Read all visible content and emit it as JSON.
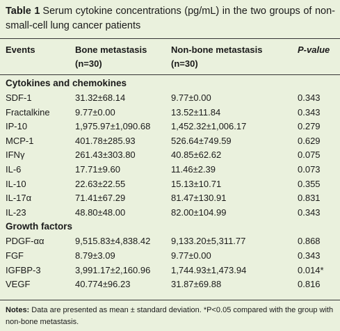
{
  "title": {
    "label": "Table 1",
    "text": "Serum cytokine concentrations (pg/mL) in the two groups of non-small-cell lung cancer patients"
  },
  "header": {
    "events": "Events",
    "bone": [
      "Bone metastasis",
      "(n=30)"
    ],
    "nonbone": [
      "Non-bone metastasis",
      "(n=30)"
    ],
    "p": "P-value"
  },
  "sections": [
    {
      "title": "Cytokines and chemokines",
      "rows": [
        [
          "SDF-1",
          "31.32±68.14",
          "9.77±0.00",
          "0.343"
        ],
        [
          "Fractalkine",
          "9.77±0.00",
          "13.52±11.84",
          "0.343"
        ],
        [
          "IP-10",
          "1,975.97±1,090.68",
          "1,452.32±1,006.17",
          "0.279"
        ],
        [
          "MCP-1",
          "401.78±285.93",
          "526.64±749.59",
          "0.629"
        ],
        [
          "IFNγ",
          "261.43±303.80",
          "40.85±62.62",
          "0.075"
        ],
        [
          "IL-6",
          "17.71±9.60",
          "11.46±2.39",
          "0.073"
        ],
        [
          "IL-10",
          "22.63±22.55",
          "15.13±10.71",
          "0.355"
        ],
        [
          "IL-17α",
          "71.41±67.29",
          "81.47±130.91",
          "0.831"
        ],
        [
          "IL-23",
          "48.80±48.00",
          "82.00±104.99",
          "0.343"
        ]
      ]
    },
    {
      "title": "Growth factors",
      "rows": [
        [
          "PDGF-αα",
          "9,515.83±4,838.42",
          "9,133.20±5,311.77",
          "0.868"
        ],
        [
          "FGF",
          "8.79±3.09",
          "9.77±0.00",
          "0.343"
        ],
        [
          "IGFBP-3",
          "3,991.17±2,160.96",
          "1,744.93±1,473.94",
          "0.014*"
        ],
        [
          "VEGF",
          "40.774±96.23",
          "31.87±69.88",
          "0.816"
        ]
      ]
    }
  ],
  "notes": {
    "label": "Notes:",
    "text": "Data are presented as mean ± standard deviation. *P<0.05 compared with the group with non-bone metastasis."
  }
}
